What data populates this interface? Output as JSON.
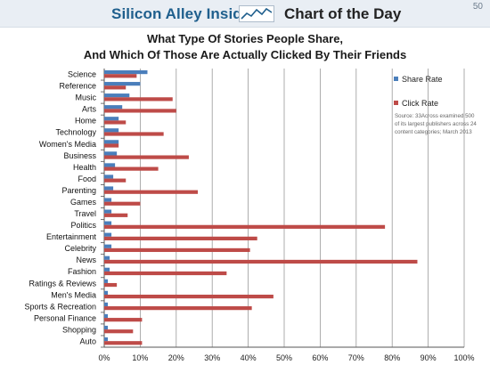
{
  "header": {
    "brand": "Silicon Alley Insider",
    "section": "Chart of the Day",
    "corner": "50"
  },
  "colors": {
    "share": "#4a7ebb",
    "click": "#be4b48",
    "brand": "#1f5f8d",
    "band": "#e9eef4"
  },
  "chart_data": {
    "type": "bar",
    "orientation": "horizontal",
    "title": "What Type Of Stories People Share,",
    "subtitle": "And Which Of Those Are Actually Clicked By Their Friends",
    "categories": [
      "Science",
      "Reference",
      "Music",
      "Arts",
      "Home",
      "Technology",
      "Women's Media",
      "Business",
      "Health",
      "Food",
      "Parenting",
      "Games",
      "Travel",
      "Politics",
      "Entertainment",
      "Celebrity",
      "News",
      "Fashion",
      "Ratings & Reviews",
      "Men's Media",
      "Sports & Recreation",
      "Personal Finance",
      "Shopping",
      "Auto"
    ],
    "series": [
      {
        "name": "Share Rate",
        "color": "#4a7ebb",
        "values": [
          12,
          10,
          7,
          5,
          4,
          4,
          4,
          3.5,
          3,
          2.5,
          2.5,
          2,
          2,
          2,
          2,
          2,
          1.5,
          1.5,
          1,
          1,
          1,
          1,
          1,
          1
        ]
      },
      {
        "name": "Click Rate",
        "color": "#be4b48",
        "values": [
          9,
          6,
          19,
          20,
          6,
          16.5,
          4,
          23.5,
          15,
          6,
          26,
          10,
          6.5,
          78,
          42.5,
          40.5,
          87,
          34,
          3.5,
          47,
          41,
          10.5,
          8,
          10.5
        ]
      }
    ],
    "xlim": [
      0,
      100
    ],
    "xticks": [
      "0%",
      "10%",
      "20%",
      "30%",
      "40%",
      "50%",
      "60%",
      "70%",
      "80%",
      "90%",
      "100%"
    ],
    "grid": true,
    "legend_position": "right",
    "annotation": [
      "Source: 33Across examined 500",
      "of its largest publishers across 24",
      "content categories; March 2013"
    ]
  }
}
